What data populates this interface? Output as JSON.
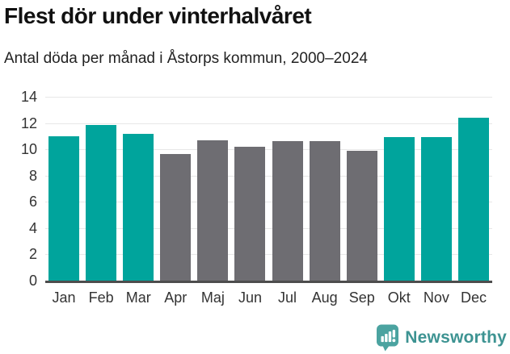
{
  "chart_data": {
    "type": "bar",
    "title": "Flest dör under vinterhalvåret",
    "subtitle": "Antal döda per månad i Åstorps kommun, 2000–2024",
    "categories": [
      "Jan",
      "Feb",
      "Mar",
      "Apr",
      "Maj",
      "Jun",
      "Jul",
      "Aug",
      "Sep",
      "Okt",
      "Nov",
      "Dec"
    ],
    "values": [
      11.0,
      11.85,
      11.2,
      9.65,
      10.7,
      10.2,
      10.65,
      10.6,
      9.9,
      10.95,
      10.95,
      12.4
    ],
    "color_pattern": [
      "highlight",
      "highlight",
      "highlight",
      "base",
      "base",
      "base",
      "base",
      "base",
      "base",
      "highlight",
      "highlight",
      "highlight"
    ],
    "highlight_color": "#00a49c",
    "base_color": "#6e6d72",
    "ylim": [
      0,
      14
    ],
    "ytick_step": 2,
    "yticks": [
      0,
      2,
      4,
      6,
      8,
      10,
      12,
      14
    ],
    "grid": true,
    "legend": "none",
    "gridline_color": "#e7e7e7",
    "axis_line_color": "#4d4d4d"
  },
  "footer": {
    "brand": "Newsworthy",
    "logo_color": "#4ba3a0",
    "text_color": "#3d9392"
  }
}
